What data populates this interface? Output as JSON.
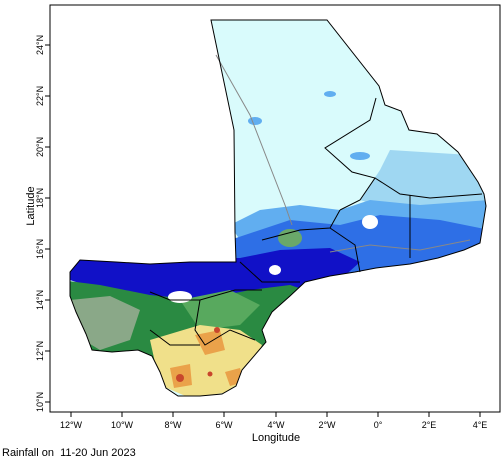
{
  "map": {
    "x_axis_title": "Longitude",
    "y_axis_title": "Latitude",
    "lon_ticks": [
      "12°W",
      "10°W",
      "8°W",
      "6°W",
      "4°W",
      "2°W",
      "0°",
      "2°E",
      "4°E"
    ],
    "lat_ticks": [
      "10°N",
      "12°N",
      "14°N",
      "16°N",
      "18°N",
      "20°N",
      "22°N",
      "24°N"
    ],
    "caption": "Rainfall on  11-20 Jun 2023",
    "colors": {
      "very_dry": "#d9fbfc",
      "dry": "#9fd7f2",
      "light_blue": "#61aef0",
      "blue": "#2e6fe6",
      "dark_blue": "#1111c7",
      "green_dark": "#2a8a42",
      "green_mid": "#58a95e",
      "green_grey": "#8aa888",
      "yellow": "#f0e08a",
      "orange": "#eaa24a",
      "red": "#c8462c",
      "border": "#000000",
      "river": "#888888"
    }
  }
}
